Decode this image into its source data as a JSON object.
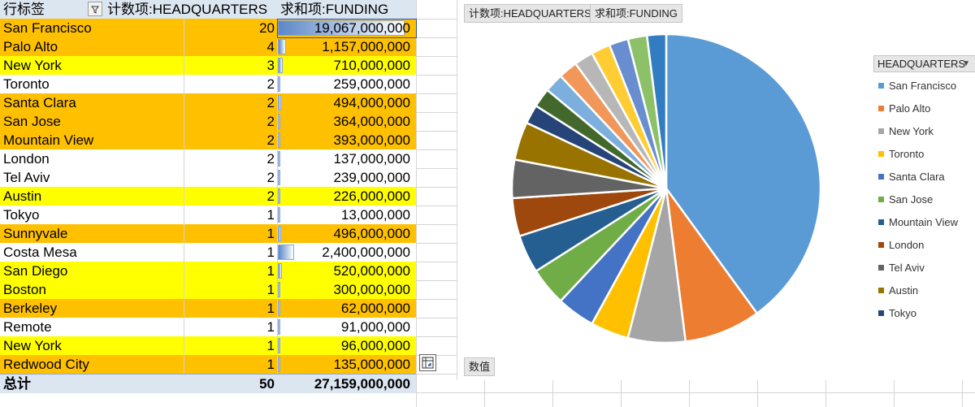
{
  "pivot": {
    "headers": {
      "row_label": "行标签",
      "count_label": "计数项:HEADQUARTERS",
      "sum_label": "求和项:FUNDING"
    },
    "rows": [
      {
        "label": "San Francisco",
        "count": "20",
        "funding": "19,067,000,000",
        "fill": "#ffc000",
        "bar": 0.92
      },
      {
        "label": "Palo Alto",
        "count": "4",
        "funding": "1,157,000,000",
        "fill": "#ffc000",
        "bar": 0.06
      },
      {
        "label": "New York",
        "count": "3",
        "funding": "710,000,000",
        "fill": "#ffff00",
        "bar": 0.035
      },
      {
        "label": "Toronto",
        "count": "2",
        "funding": "259,000,000",
        "fill": "#ffffff",
        "bar": 0.014
      },
      {
        "label": "Santa Clara",
        "count": "2",
        "funding": "494,000,000",
        "fill": "#ffc000",
        "bar": 0.025
      },
      {
        "label": "San Jose",
        "count": "2",
        "funding": "364,000,000",
        "fill": "#ffc000",
        "bar": 0.019
      },
      {
        "label": "Mountain View",
        "count": "2",
        "funding": "393,000,000",
        "fill": "#ffc000",
        "bar": 0.02
      },
      {
        "label": "London",
        "count": "2",
        "funding": "137,000,000",
        "fill": "#ffffff",
        "bar": 0.008
      },
      {
        "label": "Tel Aviv",
        "count": "2",
        "funding": "239,000,000",
        "fill": "#ffffff",
        "bar": 0.013
      },
      {
        "label": "Austin",
        "count": "2",
        "funding": "226,000,000",
        "fill": "#ffff00",
        "bar": 0.012
      },
      {
        "label": "Tokyo",
        "count": "1",
        "funding": "13,000,000",
        "fill": "#ffffff",
        "bar": 0.002
      },
      {
        "label": "Sunnyvale",
        "count": "1",
        "funding": "496,000,000",
        "fill": "#ffc000",
        "bar": 0.025
      },
      {
        "label": "Costa Mesa",
        "count": "1",
        "funding": "2,400,000,000",
        "fill": "#ffffff",
        "bar": 0.12
      },
      {
        "label": "San Diego",
        "count": "1",
        "funding": "520,000,000",
        "fill": "#ffff00",
        "bar": 0.027
      },
      {
        "label": "Boston",
        "count": "1",
        "funding": "300,000,000",
        "fill": "#ffff00",
        "bar": 0.016
      },
      {
        "label": "Berkeley",
        "count": "1",
        "funding": "62,000,000",
        "fill": "#ffc000",
        "bar": 0.004
      },
      {
        "label": "Remote",
        "count": "1",
        "funding": "91,000,000",
        "fill": "#ffffff",
        "bar": 0.005
      },
      {
        "label": "New York",
        "count": "1",
        "funding": "96,000,000",
        "fill": "#ffff00",
        "bar": 0.006
      },
      {
        "label": "Redwood City",
        "count": "1",
        "funding": "135,000,000",
        "fill": "#ffc000",
        "bar": 0.008
      }
    ],
    "total": {
      "label": "总计",
      "count": "50",
      "funding": "27,159,000,000"
    }
  },
  "chart": {
    "field_buttons": [
      "计数项:HEADQUARTERS",
      "求和项:FUNDING"
    ],
    "legend_title": "HEADQUARTERS",
    "values_button": "数值",
    "colors": {
      "San Francisco": "#5b9bd5",
      "Palo Alto": "#ed7d31",
      "New York": "#a5a5a5",
      "Toronto": "#ffc000",
      "Santa Clara": "#4472c4",
      "San Jose": "#70ad47",
      "Mountain View": "#255e91",
      "London": "#9e480e",
      "Tel Aviv": "#636363",
      "Austin": "#997300",
      "Tokyo": "#264478",
      "Sunnyvale": "#43682b",
      "Costa Mesa": "#7cafdd",
      "San Diego": "#f1975a",
      "Boston": "#b7b7b7",
      "Berkeley": "#ffcd33",
      "Remote": "#698ed0",
      "New York (2)": "#8cc168",
      "Redwood City": "#327dc2"
    },
    "legend_visible": [
      "San Francisco",
      "Palo Alto",
      "New York",
      "Toronto",
      "Santa Clara",
      "San Jose",
      "Mountain View",
      "London",
      "Tel Aviv",
      "Austin",
      "Tokyo"
    ]
  },
  "chart_data": {
    "type": "pie",
    "categories": [
      "San Francisco",
      "Palo Alto",
      "New York",
      "Toronto",
      "Santa Clara",
      "San Jose",
      "Mountain View",
      "London",
      "Tel Aviv",
      "Austin",
      "Tokyo",
      "Sunnyvale",
      "Costa Mesa",
      "San Diego",
      "Boston",
      "Berkeley",
      "Remote",
      "New York",
      "Redwood City"
    ],
    "values": [
      20,
      4,
      3,
      2,
      2,
      2,
      2,
      2,
      2,
      2,
      1,
      1,
      1,
      1,
      1,
      1,
      1,
      1,
      1
    ],
    "title": "",
    "legend": "right"
  }
}
